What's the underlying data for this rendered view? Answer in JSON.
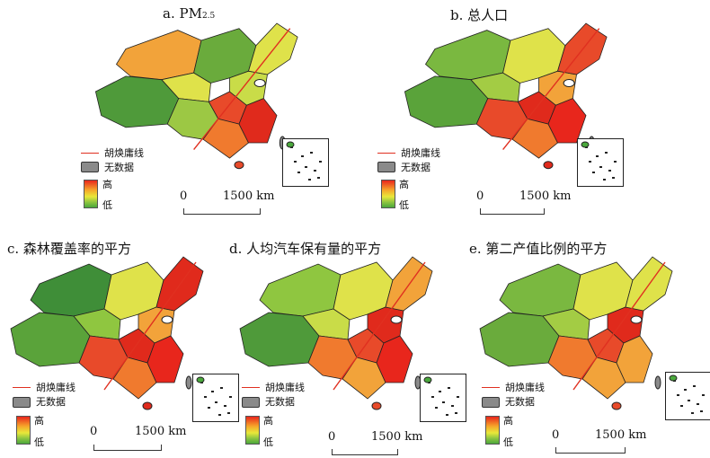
{
  "panels": [
    {
      "id": "a",
      "title_prefix": "a. PM",
      "title_sub": "2.5",
      "title_suffix": "",
      "colors": [
        "#f2a33a",
        "#4f9a3a",
        "#dfe24a",
        "#9cc844",
        "#e84a2a",
        "#f07a2e",
        "#6aab3c",
        "#c9dc48",
        "#e02a1c"
      ],
      "line_label": "胡焕庸线",
      "nodata_label": "无数据",
      "high_label": "高",
      "low_label": "低",
      "scale_zero": "0",
      "scale_dist": "1500 km"
    },
    {
      "id": "b",
      "title_prefix": "b. 总人口",
      "title_sub": "",
      "title_suffix": "",
      "colors": [
        "#7ab840",
        "#5aa33a",
        "#a3cc44",
        "#e84a2a",
        "#e02a1c",
        "#f07a2e",
        "#dfe24a",
        "#f2a33a",
        "#e8261c"
      ],
      "line_label": "胡焕庸线",
      "nodata_label": "无数据",
      "high_label": "高",
      "low_label": "低",
      "scale_zero": "0",
      "scale_dist": "1500 km"
    },
    {
      "id": "c",
      "title_prefix": "c. 森林覆盖率的平方",
      "title_sub": "",
      "title_suffix": "",
      "colors": [
        "#3f8e38",
        "#5aa33a",
        "#8fc640",
        "#e84a2a",
        "#e02a1c",
        "#f07a2e",
        "#dfe24a",
        "#f2a33a",
        "#e8261c"
      ],
      "line_label": "胡焕庸线",
      "nodata_label": "无数据",
      "high_label": "高",
      "low_label": "低",
      "scale_zero": "0",
      "scale_dist": "1500 km"
    },
    {
      "id": "d",
      "title_prefix": "d. 人均汽车保有量的平方",
      "title_sub": "",
      "title_suffix": "",
      "colors": [
        "#8fc640",
        "#4f9a3a",
        "#c9dc48",
        "#f07a2e",
        "#e84a2a",
        "#f2a33a",
        "#dfe24a",
        "#e02a1c",
        "#e8261c"
      ],
      "line_label": "胡焕庸线",
      "nodata_label": "无数据",
      "high_label": "高",
      "low_label": "低",
      "scale_zero": "0",
      "scale_dist": "1500 km"
    },
    {
      "id": "e",
      "title_prefix": "e. 第二产值比例的平方",
      "title_sub": "",
      "title_suffix": "",
      "colors": [
        "#7ab840",
        "#6aab3c",
        "#a3cc44",
        "#f07a2e",
        "#e84a2a",
        "#f2a33a",
        "#dfe24a",
        "#e02a1c",
        "#f2a33a"
      ],
      "line_label": "胡焕庸线",
      "nodata_label": "无数据",
      "high_label": "高",
      "低_label": "低",
      "low_label": "低",
      "scale_zero": "0",
      "scale_dist": "1500 km"
    }
  ],
  "colors": {
    "huline": "#e03020",
    "nodata": "#8a8a8a",
    "border": "#222222"
  }
}
